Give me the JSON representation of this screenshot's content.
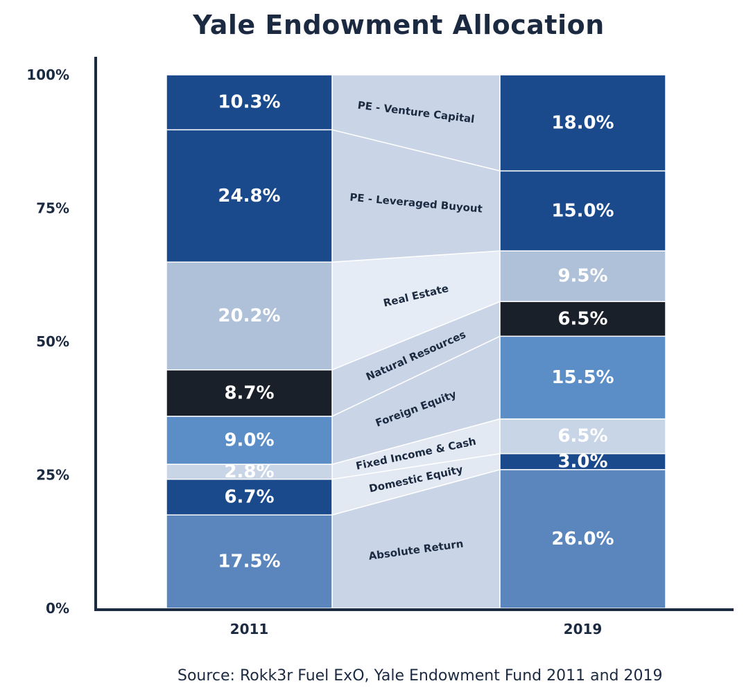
{
  "chart_data": {
    "type": "bar",
    "title": "Yale Endowment Allocation",
    "source": "Source: Rokk3r Fuel ExO, Yale Endowment Fund 2011 and 2019",
    "categories": [
      "2011",
      "2019"
    ],
    "y_ticks": [
      "0%",
      "25%",
      "50%",
      "75%",
      "100%"
    ],
    "ylim": [
      0,
      100
    ],
    "stacked": true,
    "series": [
      {
        "name": "Absolute Return",
        "values": [
          17.5,
          26.0
        ],
        "labels": [
          "17.5%",
          "26.0%"
        ],
        "color": "#5b86bd",
        "text_color": "#ffffff"
      },
      {
        "name": "Domestic Equity",
        "values": [
          6.7,
          3.0
        ],
        "labels": [
          "6.7%",
          "3.0%"
        ],
        "color": "#1a4a8c",
        "text_color": "#ffffff"
      },
      {
        "name": "Fixed Income & Cash",
        "values": [
          2.8,
          6.5
        ],
        "labels": [
          "2.8%",
          "6.5%"
        ],
        "color": "#c8d5e7",
        "text_color": "#ffffff"
      },
      {
        "name": "Foreign Equity",
        "values": [
          9.0,
          15.5
        ],
        "labels": [
          "9.0%",
          "15.5%"
        ],
        "color": "#5b8ec6",
        "text_color": "#ffffff"
      },
      {
        "name": "Natural Resources",
        "values": [
          8.7,
          6.5
        ],
        "labels": [
          "8.7%",
          "6.5%"
        ],
        "color": "#1a2029",
        "text_color": "#ffffff"
      },
      {
        "name": "Real Estate",
        "values": [
          20.2,
          9.5
        ],
        "labels": [
          "20.2%",
          "9.5%"
        ],
        "color": "#afc1d9",
        "text_color": "#ffffff"
      },
      {
        "name": "PE - Leveraged Buyout",
        "values": [
          24.8,
          15.0
        ],
        "labels": [
          "24.8%",
          "15.0%"
        ],
        "color": "#1a4a8c",
        "text_color": "#ffffff"
      },
      {
        "name": "PE - Venture Capital",
        "values": [
          10.3,
          18.0
        ],
        "labels": [
          "10.3%",
          "18.0%"
        ],
        "color": "#1a4a8c",
        "text_color": "#ffffff"
      }
    ],
    "connector_colors": [
      "#c9d5e6",
      "#e3e9f3",
      "#e3e9f3",
      "#c9d5e6",
      "#c9d5e6",
      "#e5ecf5",
      "#c9d5e6",
      "#c9d5e6"
    ],
    "label_color": "#1b2a41"
  }
}
